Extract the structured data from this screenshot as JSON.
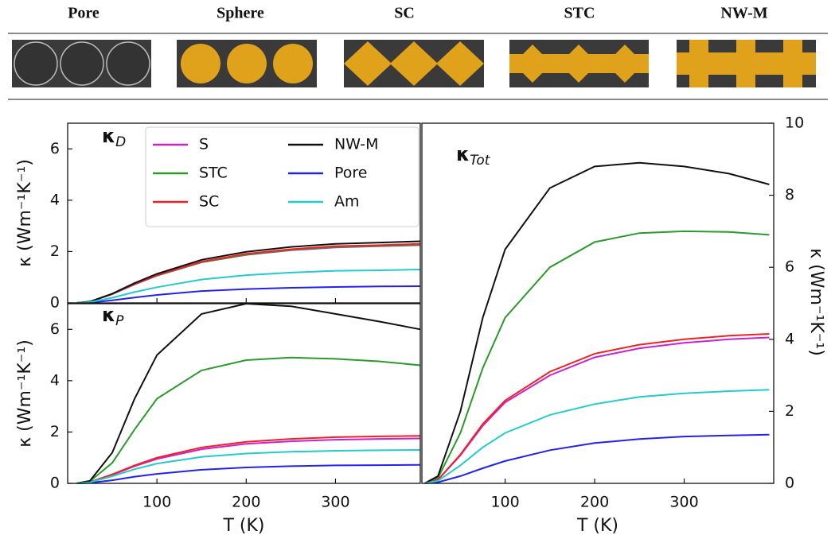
{
  "structures": [
    "Pore",
    "Sphere",
    "SC",
    "STC",
    "NW-M"
  ],
  "chart_data": [
    {
      "type": "line",
      "annotation": {
        "symbol": "κ",
        "subscript": "D"
      },
      "y_label": "κ (Wm⁻¹K⁻¹)",
      "yaxis_position": "left",
      "xtick_labels": false,
      "x": [
        10,
        25,
        50,
        75,
        100,
        150,
        200,
        250,
        300,
        350,
        395
      ],
      "xlim": [
        0,
        395
      ],
      "xticks": [
        100,
        200,
        300
      ],
      "ylim": [
        0,
        7
      ],
      "yticks": [
        0,
        2,
        4,
        6
      ],
      "legend": "upper center",
      "series": [
        {
          "name": "S",
          "color": "#cc22cc",
          "values": [
            0,
            0.05,
            0.34,
            0.72,
            1.06,
            1.58,
            1.87,
            2.05,
            2.16,
            2.21,
            2.25
          ]
        },
        {
          "name": "STC",
          "color": "#2a9a2a",
          "values": [
            0,
            0.05,
            0.34,
            0.73,
            1.07,
            1.59,
            1.88,
            2.07,
            2.18,
            2.22,
            2.27
          ]
        },
        {
          "name": "SC",
          "color": "#ee2222",
          "values": [
            0,
            0.05,
            0.35,
            0.74,
            1.08,
            1.61,
            1.91,
            2.09,
            2.21,
            2.25,
            2.3
          ]
        },
        {
          "name": "NW-M",
          "color": "#111111",
          "values": [
            0,
            0.05,
            0.36,
            0.77,
            1.13,
            1.68,
            1.99,
            2.18,
            2.3,
            2.35,
            2.4
          ]
        },
        {
          "name": "Pore",
          "color": "#2222ee",
          "values": [
            0,
            0.01,
            0.1,
            0.21,
            0.31,
            0.46,
            0.54,
            0.59,
            0.62,
            0.64,
            0.65
          ]
        },
        {
          "name": "Am",
          "color": "#22cccc",
          "values": [
            0,
            0.03,
            0.2,
            0.42,
            0.61,
            0.91,
            1.08,
            1.18,
            1.25,
            1.27,
            1.3
          ]
        }
      ]
    },
    {
      "type": "line",
      "annotation": {
        "symbol": "κ",
        "subscript": "P"
      },
      "y_label": "κ (Wm⁻¹K⁻¹)",
      "x_label": "T (K)",
      "yaxis_position": "left",
      "xtick_labels": true,
      "x": [
        10,
        25,
        50,
        75,
        100,
        150,
        200,
        250,
        300,
        350,
        395
      ],
      "xlim": [
        0,
        395
      ],
      "xticks": [
        100,
        200,
        300
      ],
      "ylim": [
        0,
        7
      ],
      "yticks": [
        0,
        2,
        4,
        6
      ],
      "series": [
        {
          "color": "#cc22cc",
          "values": [
            0,
            0.05,
            0.33,
            0.67,
            0.95,
            1.33,
            1.54,
            1.64,
            1.7,
            1.73,
            1.75
          ]
        },
        {
          "color": "#2a9a2a",
          "values": [
            0,
            0.08,
            0.8,
            2.1,
            3.3,
            4.4,
            4.8,
            4.9,
            4.85,
            4.75,
            4.6
          ]
        },
        {
          "color": "#ee2222",
          "values": [
            0,
            0.05,
            0.35,
            0.7,
            1.0,
            1.4,
            1.62,
            1.73,
            1.8,
            1.83,
            1.85
          ]
        },
        {
          "color": "#111111",
          "values": [
            0,
            0.1,
            1.2,
            3.3,
            5.0,
            6.6,
            7.0,
            6.9,
            6.6,
            6.3,
            6.0
          ]
        },
        {
          "color": "#2222ee",
          "values": [
            0,
            0.02,
            0.12,
            0.26,
            0.37,
            0.53,
            0.62,
            0.67,
            0.7,
            0.71,
            0.72
          ]
        },
        {
          "color": "#22cccc",
          "values": [
            0,
            0.04,
            0.28,
            0.55,
            0.77,
            1.03,
            1.16,
            1.23,
            1.27,
            1.29,
            1.3
          ]
        }
      ]
    },
    {
      "type": "line",
      "annotation": {
        "symbol": "κ",
        "subscript": "Tot"
      },
      "y_label": "κ (Wm⁻¹K⁻¹)",
      "x_label": "T (K)",
      "yaxis_position": "right",
      "xtick_labels": true,
      "x": [
        10,
        25,
        50,
        75,
        100,
        150,
        200,
        250,
        300,
        350,
        395
      ],
      "xlim": [
        7,
        400
      ],
      "xticks": [
        100,
        200,
        300
      ],
      "ylim": [
        0,
        10
      ],
      "yticks": [
        0,
        2,
        4,
        6,
        8,
        10
      ],
      "series": [
        {
          "color": "#cc22cc",
          "values": [
            0,
            0.1,
            0.78,
            1.6,
            2.25,
            3.0,
            3.5,
            3.75,
            3.9,
            4.0,
            4.05
          ]
        },
        {
          "color": "#2a9a2a",
          "values": [
            0,
            0.15,
            1.4,
            3.2,
            4.6,
            6.0,
            6.7,
            6.95,
            7.0,
            6.98,
            6.9
          ]
        },
        {
          "color": "#ee2222",
          "values": [
            0,
            0.1,
            0.8,
            1.65,
            2.3,
            3.1,
            3.6,
            3.85,
            4.0,
            4.1,
            4.15
          ]
        },
        {
          "color": "#111111",
          "values": [
            0,
            0.2,
            2.0,
            4.6,
            6.5,
            8.2,
            8.8,
            8.9,
            8.8,
            8.6,
            8.3
          ]
        },
        {
          "color": "#2222ee",
          "values": [
            0,
            0.03,
            0.2,
            0.42,
            0.62,
            0.92,
            1.12,
            1.23,
            1.3,
            1.33,
            1.35
          ]
        },
        {
          "color": "#22cccc",
          "values": [
            0,
            0.07,
            0.5,
            1.0,
            1.4,
            1.9,
            2.2,
            2.4,
            2.5,
            2.56,
            2.6
          ]
        }
      ]
    }
  ]
}
